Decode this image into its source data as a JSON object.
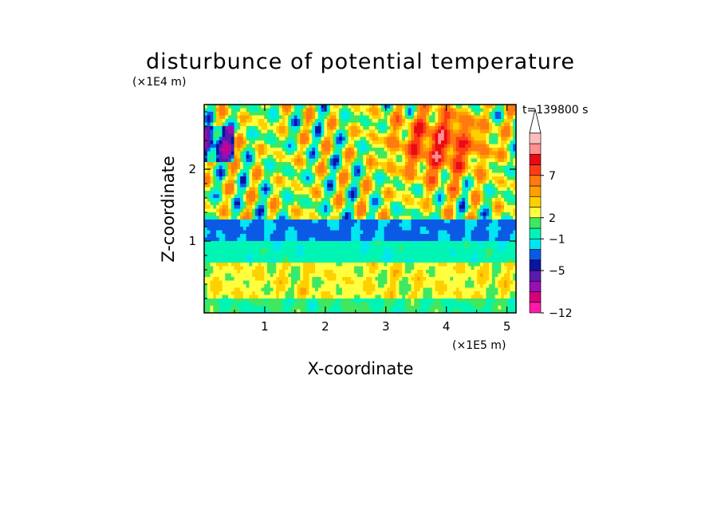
{
  "chart_data": {
    "type": "heatmap",
    "title": "disturbunce of potential temperature",
    "time_label": "t=139800 s",
    "xlabel": "X-coordinate",
    "ylabel": "Z-coordinate",
    "x_unit": "(×1E5 m)",
    "y_unit": "(×1E4 m)",
    "xlim": [
      0,
      5.15
    ],
    "ylim": [
      0,
      2.9
    ],
    "xticks": [
      {
        "value": 1,
        "label": "1"
      },
      {
        "value": 2,
        "label": "2"
      },
      {
        "value": 3,
        "label": "3"
      },
      {
        "value": 4,
        "label": "4"
      },
      {
        "value": 5,
        "label": "5"
      }
    ],
    "yticks": [
      {
        "value": 1,
        "label": "1"
      },
      {
        "value": 2,
        "label": "2"
      }
    ],
    "colorbar": {
      "levels": [
        {
          "color": "#ff1aa8"
        },
        {
          "color": "#d4007c"
        },
        {
          "color": "#9a0eb4"
        },
        {
          "color": "#5a1ab0"
        },
        {
          "color": "#0a14a0"
        },
        {
          "color": "#0a5ae6"
        },
        {
          "color": "#00e6f0"
        },
        {
          "color": "#00f5b4"
        },
        {
          "color": "#40e860"
        },
        {
          "color": "#ffff40"
        },
        {
          "color": "#ffd000"
        },
        {
          "color": "#ffa000"
        },
        {
          "color": "#ff7a10"
        },
        {
          "color": "#ff3c14"
        },
        {
          "color": "#e80a14"
        },
        {
          "color": "#ff9090"
        },
        {
          "color": "#ffbcbc"
        }
      ],
      "labels": [
        {
          "value": -12,
          "label": "−12",
          "boundary": 0
        },
        {
          "value": -5,
          "label": "−5",
          "boundary": 4
        },
        {
          "value": -1,
          "label": "−1",
          "boundary": 7
        },
        {
          "value": 2,
          "label": "2",
          "boundary": 9
        },
        {
          "value": 7,
          "label": "7",
          "boundary": 13
        }
      ]
    },
    "field_levels": [
      -12,
      -9,
      -7,
      -5,
      -3,
      -2,
      -1,
      0,
      1,
      2,
      3,
      4,
      5,
      7,
      9,
      11,
      13
    ],
    "field_regions": [
      {
        "z_range": [
          0,
          0.2
        ],
        "description": "yellow / green near surface",
        "typical": 1.2
      },
      {
        "z_range": [
          0.2,
          0.7
        ],
        "description": "orange / yellow banded layer",
        "typical": 2.5
      },
      {
        "z_range": [
          0.7,
          1.0
        ],
        "description": "green transition layer",
        "typical": 0.3
      },
      {
        "z_range": [
          1.0,
          1.3
        ],
        "description": "cyan minimum layer",
        "typical": -1.2
      },
      {
        "z_range": [
          1.3,
          2.9
        ],
        "description": "wavy yellow/orange/red with blue cells; red maximum near x=3.5–4.5",
        "typical": 2.0
      }
    ]
  }
}
